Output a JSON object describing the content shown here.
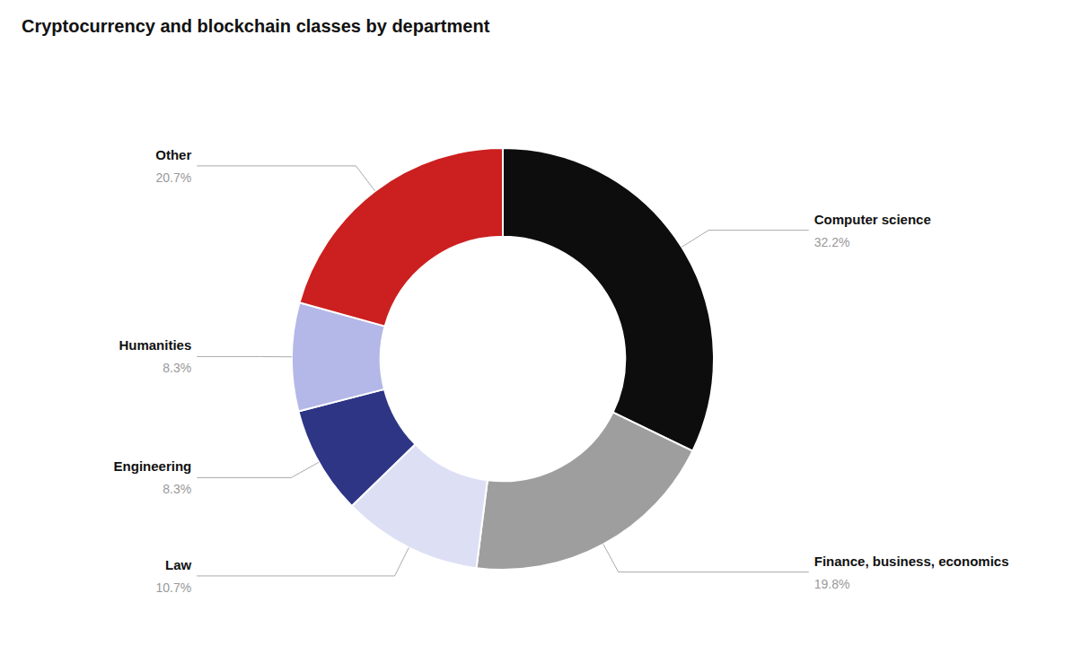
{
  "chart_data": {
    "type": "donut",
    "title": "Cryptocurrency and blockchain classes by department",
    "categories": [
      "Computer science",
      "Finance, business, economics",
      "Law",
      "Engineering",
      "Humanities",
      "Other"
    ],
    "values": [
      32.2,
      19.8,
      10.7,
      8.3,
      8.3,
      20.7
    ],
    "value_labels": [
      "32.2%",
      "19.8%",
      "10.7%",
      "8.3%",
      "8.3%",
      "20.7%"
    ],
    "colors": [
      "#0d0d0d",
      "#9e9e9e",
      "#dde0f5",
      "#2e3585",
      "#b3b8e8",
      "#cc1f1f"
    ],
    "data_labels": true
  }
}
